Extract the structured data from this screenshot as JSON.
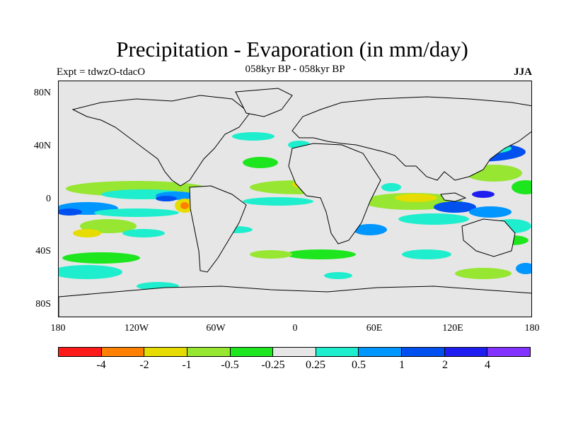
{
  "header": {
    "title": "Precipitation - Evaporation (in mm/day)",
    "subtitle": "058kyr BP - 058kyr BP",
    "left_label": "Expt = tdwzO-tdacO",
    "right_label": "JJA"
  },
  "axes": {
    "lat_ticks": [
      "80N",
      "40N",
      "0",
      "40S",
      "80S"
    ],
    "lon_ticks": [
      "180",
      "120W",
      "60W",
      "0",
      "60E",
      "120E",
      "180"
    ]
  },
  "map": {
    "background_color": "#e6e6e6",
    "coastline_color": "#000000",
    "projection": "cylindrical equidistant",
    "lat_range": [
      -90,
      90
    ],
    "lon_range": [
      -180,
      180
    ]
  },
  "colorbar": {
    "colors": [
      "#ff1a1a",
      "#ff8000",
      "#e6dc00",
      "#96e632",
      "#1ee61e",
      "#e6e6e6",
      "#1eeecd",
      "#0096ff",
      "#0050f0",
      "#1e1ef0",
      "#8232ff"
    ],
    "labels": [
      "-4",
      "-2",
      "-1",
      "-0.5",
      "-0.25",
      "0.25",
      "0.5",
      "1",
      "2",
      "4"
    ]
  }
}
